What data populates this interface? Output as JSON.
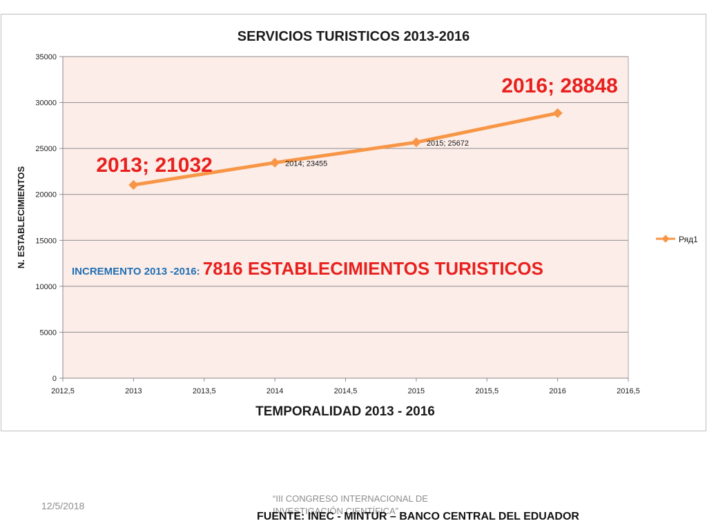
{
  "chart_data": {
    "type": "scatter",
    "title": "SERVICIOS TURISTICOS 2013-2016",
    "xlabel": "TEMPORALIDAD 2013 - 2016",
    "ylabel": "N. ESTABLECIMIENTOS",
    "xlim": [
      2012.5,
      2016.5
    ],
    "ylim": [
      0,
      35000
    ],
    "x_ticks": [
      "2012,5",
      "2013",
      "2013,5",
      "2014",
      "2014,5",
      "2015",
      "2015,5",
      "2016",
      "2016,5"
    ],
    "y_ticks": [
      "0",
      "5000",
      "10000",
      "15000",
      "20000",
      "25000",
      "30000",
      "35000"
    ],
    "grid": true,
    "legend_position": "right",
    "series": [
      {
        "name": "Ряд1",
        "color": "#f79646",
        "points": [
          {
            "x": 2013,
            "y": 21032,
            "label": "2013; 21032",
            "label_style": "large-red"
          },
          {
            "x": 2014,
            "y": 23455,
            "label": "2014; 23455",
            "label_style": "small"
          },
          {
            "x": 2015,
            "y": 25672,
            "label": "2015; 25672",
            "label_style": "small"
          },
          {
            "x": 2016,
            "y": 28848,
            "label": "2016; 28848",
            "label_style": "large-red"
          }
        ]
      }
    ],
    "annotation": {
      "prefix": "INCREMENTO 2013 -2016: ",
      "main": "7816 ESTABLECIMIENTOS TURISTICOS",
      "prefix_color": "#1f6fb4",
      "main_color": "#e8201e"
    },
    "plot_background": "#fcede8",
    "label_highlight_color": "#e8201e"
  },
  "footer": {
    "date": "12/5/2018",
    "congress": "“III CONGRESO INTERNACIONAL DE INVESTIGACIÓN CIENTÍFICA”",
    "source": "FUENTE: INEC - MINTUR –  BANCO CENTRAL DEL EDUADOR"
  }
}
